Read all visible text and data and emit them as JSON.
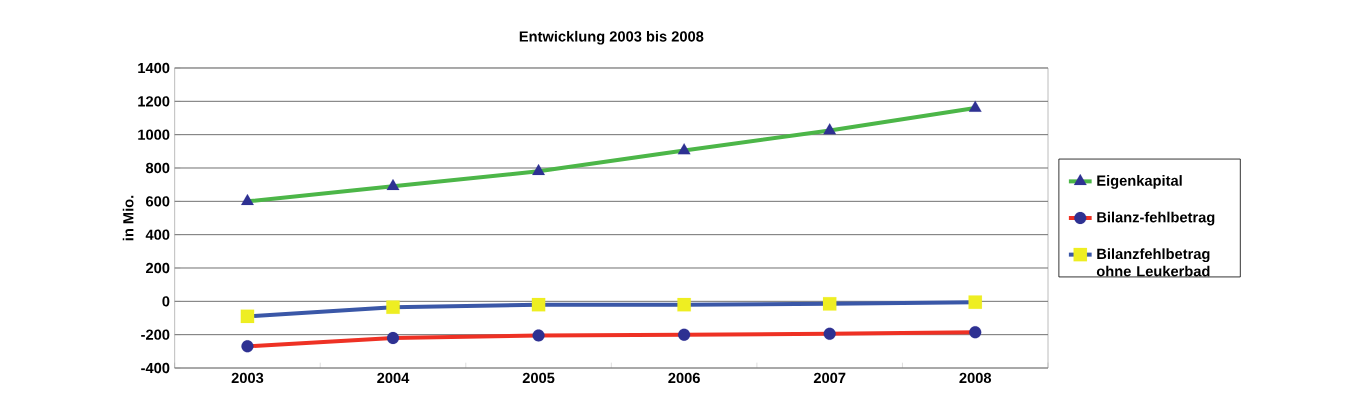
{
  "chart_data": {
    "type": "line",
    "title": "Entwicklung 2003 bis 2008",
    "ylabel": "in Mio.",
    "categories": [
      "2003",
      "2004",
      "2005",
      "2006",
      "2007",
      "2008"
    ],
    "series": [
      {
        "name": "Eigenkapital",
        "color": "#4cb648",
        "marker": "triangle",
        "values": [
          600,
          690,
          780,
          905,
          1025,
          1160
        ]
      },
      {
        "name": "Bilanz-fehlbetrag",
        "color": "#ee3124",
        "marker": "circle",
        "values": [
          -270,
          -220,
          -205,
          -200,
          -195,
          -185
        ]
      },
      {
        "name": "Bilanzfehlbetrag ohne Leukerbad",
        "color": "#3a57a7",
        "marker": "square",
        "values": [
          -90,
          -35,
          -20,
          -20,
          -15,
          -5
        ]
      }
    ],
    "ylim": [
      -400,
      1400
    ],
    "yticks": [
      -400,
      -200,
      0,
      200,
      400,
      600,
      800,
      1000,
      1200,
      1400
    ],
    "grid": "y",
    "legend": "right",
    "line_style": "solid"
  }
}
